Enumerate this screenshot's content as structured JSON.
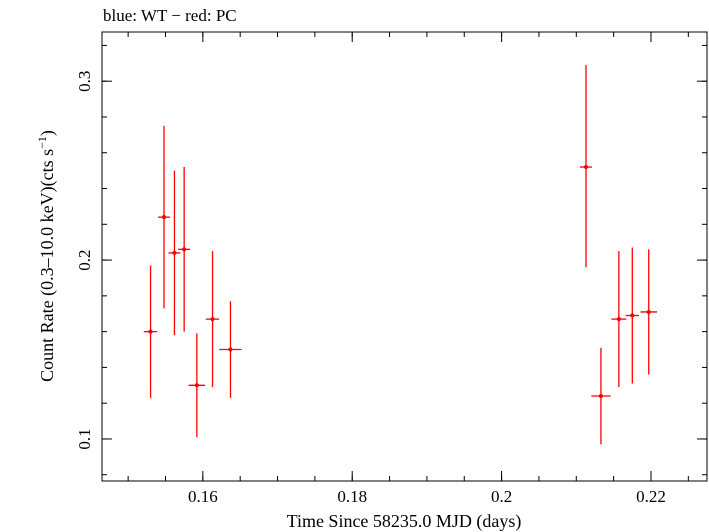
{
  "chart_data": {
    "type": "scatter",
    "title": "blue: WT − red: PC",
    "xlabel": "Time Since 58235.0 MJD (days)",
    "ylabel_main": "Count Rate (0.3–10.0 keV)(cts s",
    "ylabel_sup": "−1",
    "ylabel_close": ")",
    "xlim": [
      0.1465,
      0.2275
    ],
    "ylim": [
      0.0765,
      0.3275
    ],
    "xticks": [
      {
        "value": 0.16,
        "label": "0.16"
      },
      {
        "value": 0.18,
        "label": "0.18"
      },
      {
        "value": 0.2,
        "label": "0.2"
      },
      {
        "value": 0.22,
        "label": "0.22"
      }
    ],
    "xminor_step": 0.005,
    "yticks": [
      {
        "value": 0.1,
        "label": "0.1"
      },
      {
        "value": 0.2,
        "label": "0.2"
      },
      {
        "value": 0.3,
        "label": "0.3"
      }
    ],
    "yminor_step": 0.02,
    "series": [
      {
        "color": "#ff0000",
        "points": [
          {
            "x": 0.153,
            "y": 0.16,
            "xerr": 0.0009,
            "yerr_low": 0.037,
            "yerr_high": 0.037
          },
          {
            "x": 0.1548,
            "y": 0.224,
            "xerr": 0.0008,
            "yerr_low": 0.051,
            "yerr_high": 0.051
          },
          {
            "x": 0.1562,
            "y": 0.204,
            "xerr": 0.0008,
            "yerr_low": 0.046,
            "yerr_high": 0.046
          },
          {
            "x": 0.1575,
            "y": 0.206,
            "xerr": 0.0008,
            "yerr_low": 0.046,
            "yerr_high": 0.046
          },
          {
            "x": 0.1592,
            "y": 0.13,
            "xerr": 0.0011,
            "yerr_low": 0.029,
            "yerr_high": 0.029
          },
          {
            "x": 0.1613,
            "y": 0.167,
            "xerr": 0.0009,
            "yerr_low": 0.038,
            "yerr_high": 0.038
          },
          {
            "x": 0.1637,
            "y": 0.15,
            "xerr": 0.0015,
            "yerr_low": 0.027,
            "yerr_high": 0.027
          },
          {
            "x": 0.2113,
            "y": 0.252,
            "xerr": 0.0008,
            "yerr_low": 0.056,
            "yerr_high": 0.057
          },
          {
            "x": 0.2133,
            "y": 0.124,
            "xerr": 0.0013,
            "yerr_low": 0.027,
            "yerr_high": 0.027
          },
          {
            "x": 0.2157,
            "y": 0.167,
            "xerr": 0.001,
            "yerr_low": 0.038,
            "yerr_high": 0.038
          },
          {
            "x": 0.2175,
            "y": 0.169,
            "xerr": 0.0009,
            "yerr_low": 0.038,
            "yerr_high": 0.038
          },
          {
            "x": 0.2197,
            "y": 0.171,
            "xerr": 0.0011,
            "yerr_low": 0.035,
            "yerr_high": 0.035
          }
        ]
      }
    ]
  }
}
